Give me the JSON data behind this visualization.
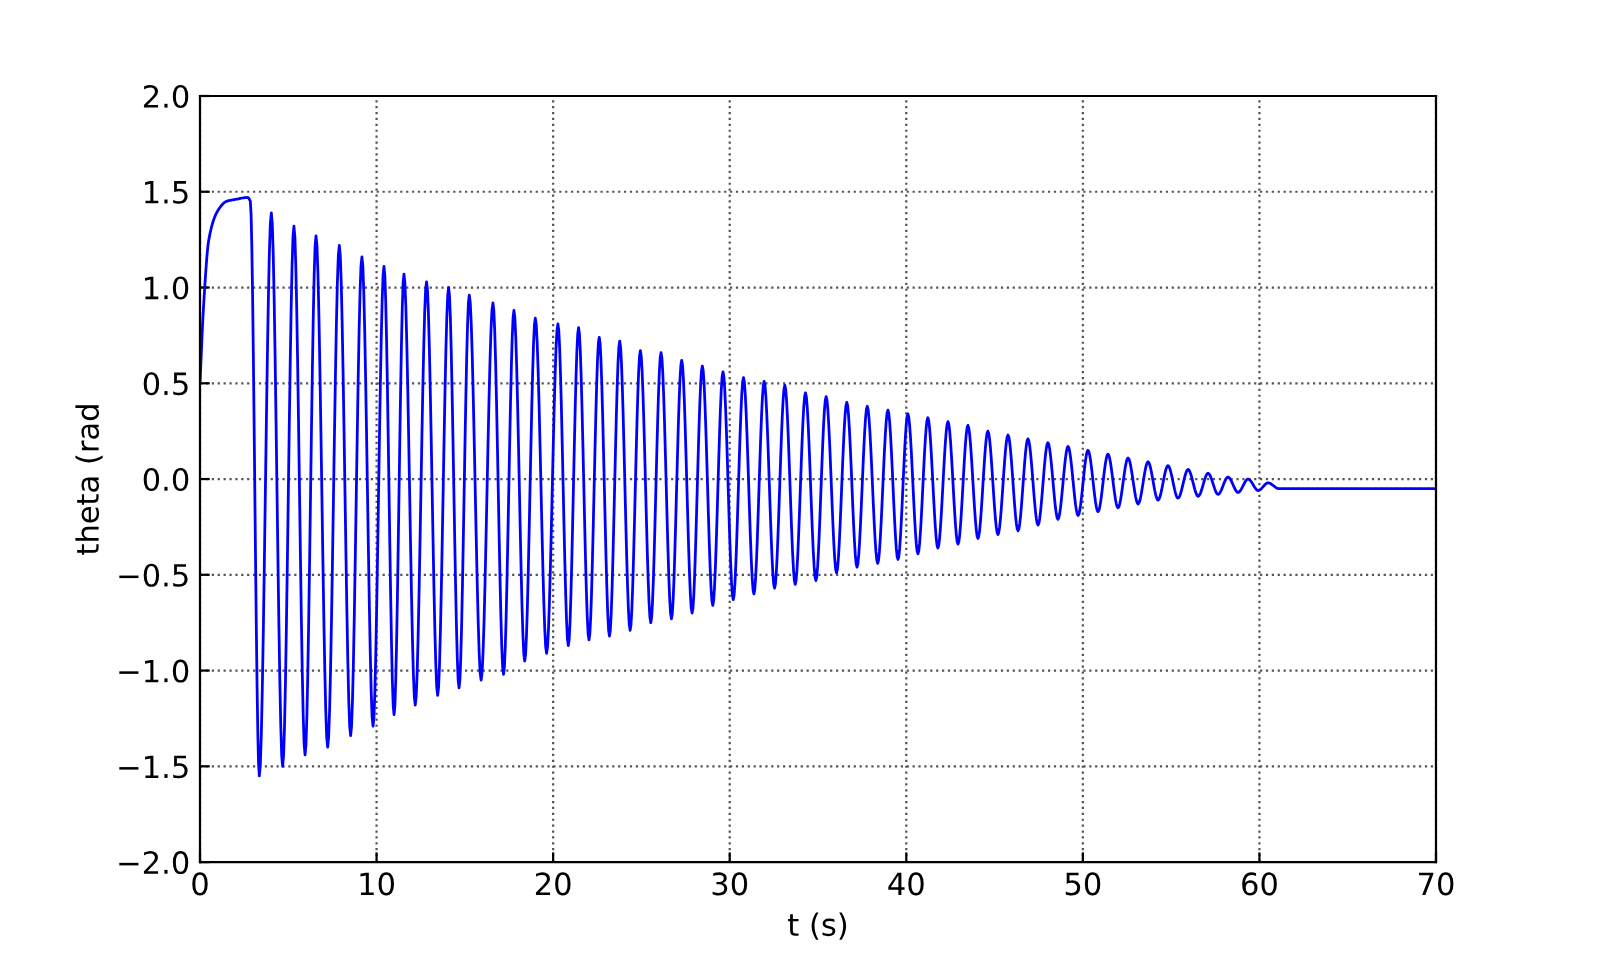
{
  "chart_data": {
    "type": "line",
    "xlabel": "t (s)",
    "ylabel": "theta (rad",
    "xlim": [
      0,
      70
    ],
    "ylim": [
      -2,
      2
    ],
    "xticks": [
      0,
      10,
      20,
      30,
      40,
      50,
      60,
      70
    ],
    "yticks": [
      {
        "value": -2.0,
        "label": "−2.0"
      },
      {
        "value": -1.5,
        "label": "−1.5"
      },
      {
        "value": -1.0,
        "label": "−1.0"
      },
      {
        "value": -0.5,
        "label": "−0.5"
      },
      {
        "value": 0.0,
        "label": "0.0"
      },
      {
        "value": 0.5,
        "label": "0.5"
      },
      {
        "value": 1.0,
        "label": "1.0"
      },
      {
        "value": 1.5,
        "label": "1.5"
      },
      {
        "value": 2.0,
        "label": "2.0"
      }
    ],
    "grid": true,
    "legend": false,
    "marker": "none",
    "line_style": "solid",
    "series": [
      {
        "color": "#0000ff",
        "x": [
          0,
          0.2,
          0.5,
          1.0,
          1.5,
          2.0,
          2.7,
          2.85,
          3.36,
          4.04,
          4.68,
          5.32,
          5.95,
          6.57,
          7.23,
          7.89,
          8.53,
          9.17,
          9.8,
          10.42,
          10.99,
          11.55,
          12.19,
          12.83,
          13.46,
          14.08,
          14.67,
          15.25,
          15.92,
          16.59,
          17.19,
          17.78,
          18.39,
          18.99,
          19.63,
          20.27,
          20.86,
          21.44,
          22.03,
          22.61,
          23.19,
          23.77,
          24.36,
          24.94,
          25.53,
          26.11,
          26.7,
          27.28,
          27.87,
          28.45,
          29.04,
          29.62,
          30.2,
          30.78,
          31.37,
          31.95,
          32.54,
          33.12,
          33.71,
          34.29,
          34.88,
          35.46,
          36.05,
          36.63,
          37.21,
          37.79,
          38.38,
          38.96,
          39.53,
          40.09,
          40.66,
          41.22,
          41.79,
          42.36,
          42.93,
          43.49,
          44.06,
          44.62,
          45.19,
          45.76,
          46.33,
          46.89,
          47.46,
          48.02,
          48.59,
          49.16,
          49.73,
          50.29,
          50.86,
          51.42,
          51.99,
          52.56,
          53.13,
          53.69,
          54.26,
          54.82,
          55.39,
          55.96,
          56.53,
          57.09,
          57.66,
          58.22,
          58.79,
          59.36,
          59.93,
          60.49,
          61.1,
          62,
          70
        ],
        "values": [
          0.5,
          0.9,
          1.25,
          1.4,
          1.45,
          1.46,
          1.47,
          1.45,
          -1.55,
          1.39,
          -1.5,
          1.32,
          -1.44,
          1.27,
          -1.4,
          1.22,
          -1.34,
          1.16,
          -1.29,
          1.11,
          -1.23,
          1.07,
          -1.18,
          1.03,
          -1.13,
          1.0,
          -1.09,
          0.96,
          -1.05,
          0.92,
          -1.02,
          0.88,
          -0.95,
          0.84,
          -0.91,
          0.81,
          -0.87,
          0.79,
          -0.84,
          0.74,
          -0.82,
          0.72,
          -0.79,
          0.67,
          -0.75,
          0.66,
          -0.73,
          0.62,
          -0.7,
          0.59,
          -0.66,
          0.56,
          -0.63,
          0.53,
          -0.6,
          0.51,
          -0.57,
          0.49,
          -0.55,
          0.45,
          -0.53,
          0.43,
          -0.49,
          0.4,
          -0.46,
          0.38,
          -0.44,
          0.36,
          -0.42,
          0.34,
          -0.39,
          0.32,
          -0.36,
          0.3,
          -0.34,
          0.28,
          -0.31,
          0.25,
          -0.29,
          0.23,
          -0.27,
          0.21,
          -0.24,
          0.19,
          -0.21,
          0.17,
          -0.19,
          0.15,
          -0.17,
          0.13,
          -0.15,
          0.11,
          -0.13,
          0.09,
          -0.11,
          0.07,
          -0.1,
          0.05,
          -0.09,
          0.03,
          -0.08,
          0.01,
          -0.07,
          0.0,
          -0.06,
          -0.02,
          -0.05,
          -0.05,
          -0.05
        ]
      }
    ]
  }
}
